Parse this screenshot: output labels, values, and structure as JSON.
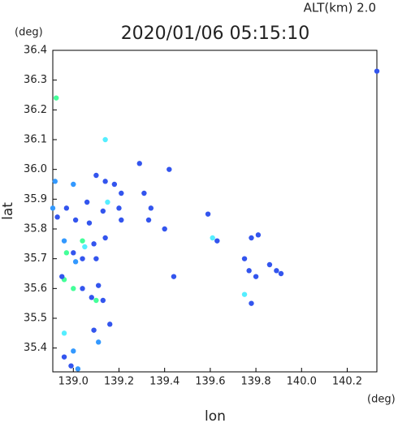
{
  "chart_data": {
    "type": "scatter",
    "title": "2020/01/06 05:15:10",
    "annotation": "ALT(km) 2.0",
    "y_unit": "(deg)",
    "x_unit": "(deg)",
    "xlabel": "lon",
    "ylabel": "lat",
    "xlim": [
      138.91,
      140.33
    ],
    "ylim": [
      35.32,
      36.4
    ],
    "xticks": [
      {
        "value": 139,
        "label": "139.0"
      },
      139.2,
      139.4,
      139.6,
      139.8,
      {
        "value": 140,
        "label": "140.0"
      },
      140.2
    ],
    "yticks": [
      35.4,
      35.5,
      35.6,
      35.7,
      35.8,
      35.9,
      {
        "value": 36,
        "label": "36.0"
      },
      36.1,
      36.2,
      36.3,
      36.4
    ],
    "x": [
      140.33,
      138.925,
      139.14,
      139.29,
      139.42,
      138.92,
      139.0,
      139.1,
      139.14,
      139.18,
      139.21,
      139.15,
      139.31,
      138.91,
      138.97,
      139.06,
      139.13,
      139.2,
      139.21,
      139.33,
      138.93,
      139.01,
      139.07,
      138.96,
      139.04,
      139.09,
      139.14,
      139.0,
      139.05,
      138.97,
      139.01,
      139.04,
      139.1,
      138.96,
      138.95,
      139.0,
      139.04,
      139.11,
      139.1,
      139.08,
      139.13,
      139.16,
      138.96,
      139.09,
      139.11,
      138.96,
      139.0,
      138.99,
      139.02,
      139.59,
      139.61,
      139.63,
      139.78,
      139.81,
      139.86,
      139.89,
      139.91,
      139.75,
      139.77,
      139.8,
      139.75,
      139.78,
      139.44,
      139.4,
      139.34
    ],
    "y": [
      36.33,
      36.24,
      36.1,
      36.02,
      36.0,
      35.96,
      35.95,
      35.98,
      35.96,
      35.95,
      35.92,
      35.89,
      35.92,
      35.87,
      35.87,
      35.89,
      35.86,
      35.87,
      35.83,
      35.83,
      35.84,
      35.83,
      35.82,
      35.76,
      35.76,
      35.75,
      35.77,
      35.72,
      35.74,
      35.72,
      35.69,
      35.7,
      35.7,
      35.63,
      35.64,
      35.6,
      35.6,
      35.61,
      35.56,
      35.57,
      35.56,
      35.48,
      35.45,
      35.46,
      35.42,
      35.37,
      35.39,
      35.34,
      35.33,
      35.85,
      35.77,
      35.76,
      35.77,
      35.78,
      35.68,
      35.66,
      35.65,
      35.7,
      35.66,
      35.64,
      35.58,
      35.55,
      35.64,
      35.8,
      35.87
    ],
    "colors": [
      "#3355ee",
      "#44ff99",
      "#55eeff",
      "#3355ee",
      "#3355ee",
      "#3399ff",
      "#3399ff",
      "#3355ee",
      "#3355ee",
      "#3355ee",
      "#3355ee",
      "#55eeff",
      "#3355ee",
      "#3399ff",
      "#3355ee",
      "#3355ee",
      "#3355ee",
      "#3355ee",
      "#3355ee",
      "#3355ee",
      "#3355ee",
      "#3355ee",
      "#3355ee",
      "#3399ff",
      "#44ff99",
      "#3355ee",
      "#3355ee",
      "#3355ee",
      "#55eeff",
      "#44ff99",
      "#3399ff",
      "#3355ee",
      "#3355ee",
      "#44ff99",
      "#3355ee",
      "#44ff99",
      "#3355ee",
      "#3355ee",
      "#44ff99",
      "#3355ee",
      "#3355ee",
      "#3355ee",
      "#55eeff",
      "#3355ee",
      "#3399ff",
      "#3355ee",
      "#3399ff",
      "#3355ee",
      "#3399ff",
      "#3355ee",
      "#55eeff",
      "#3355ee",
      "#3355ee",
      "#3355ee",
      "#3355ee",
      "#3355ee",
      "#3355ee",
      "#3355ee",
      "#3355ee",
      "#3355ee",
      "#55eeff",
      "#3355ee",
      "#3355ee",
      "#3355ee",
      "#3355ee"
    ]
  }
}
